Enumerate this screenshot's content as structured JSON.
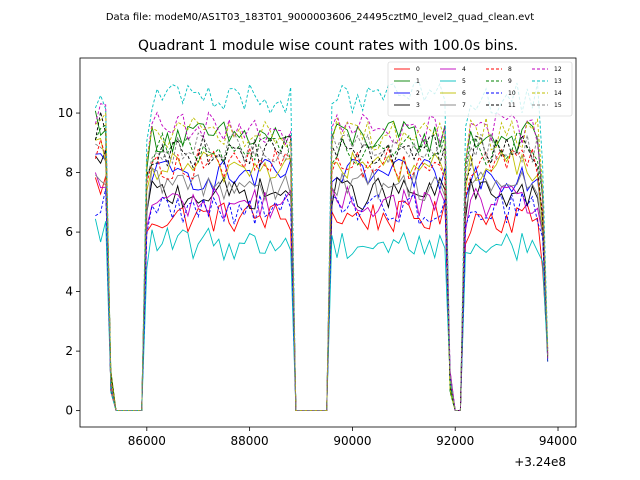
{
  "chart_data": {
    "type": "line",
    "suptitle": "Data file: modeM0/AS1T03_183T01_9000003606_24495cztM0_level2_quad_clean.evt",
    "title": "Quadrant 1 module wise count rates with 100.0s bins.",
    "xlabel": "",
    "ylabel": "",
    "x_offset_label": "+3.24e8",
    "xlim": [
      84700,
      94350
    ],
    "ylim": [
      -0.55,
      11.85
    ],
    "x_ticks": [
      {
        "value": 86000,
        "label": "86000"
      },
      {
        "value": 88000,
        "label": "88000"
      },
      {
        "value": 90000,
        "label": "90000"
      },
      {
        "value": 92000,
        "label": "92000"
      },
      {
        "value": 94000,
        "label": "94000"
      }
    ],
    "y_ticks": [
      {
        "value": 0,
        "label": "0"
      },
      {
        "value": 2,
        "label": "2"
      },
      {
        "value": 4,
        "label": "4"
      },
      {
        "value": 6,
        "label": "6"
      },
      {
        "value": 8,
        "label": "8"
      },
      {
        "value": 10,
        "label": "10"
      }
    ],
    "legend_position": "top-right",
    "series": [
      {
        "name": "0",
        "color": "#ff0000",
        "style": "solid",
        "level": 6.5,
        "start": 7.6
      },
      {
        "name": "1",
        "color": "#008000",
        "style": "solid",
        "level": 9.2,
        "start": 9.8
      },
      {
        "name": "2",
        "color": "#0000ff",
        "style": "solid",
        "level": 7.9,
        "start": 8.3
      },
      {
        "name": "3",
        "color": "#000000",
        "style": "solid",
        "level": 7.3,
        "start": 8.2
      },
      {
        "name": "4",
        "color": "#bf00bf",
        "style": "solid",
        "level": 7.0,
        "start": 7.6
      },
      {
        "name": "5",
        "color": "#00bfbf",
        "style": "solid",
        "level": 5.6,
        "start": 6.0
      },
      {
        "name": "6",
        "color": "#bfbf00",
        "style": "solid",
        "level": 8.2,
        "start": 8.6
      },
      {
        "name": "7",
        "color": "#808080",
        "style": "solid",
        "level": 7.6,
        "start": 7.4
      },
      {
        "name": "8",
        "color": "#ff0000",
        "style": "dashed",
        "level": 8.3,
        "start": 9.0
      },
      {
        "name": "9",
        "color": "#008000",
        "style": "dashed",
        "level": 8.8,
        "start": 9.6
      },
      {
        "name": "10",
        "color": "#0000ff",
        "style": "dashed",
        "level": 6.8,
        "start": 7.0
      },
      {
        "name": "11",
        "color": "#000000",
        "style": "dashed",
        "level": 8.7,
        "start": 9.5
      },
      {
        "name": "12",
        "color": "#bf00bf",
        "style": "dashed",
        "level": 9.5,
        "start": 10.0
      },
      {
        "name": "13",
        "color": "#00bfbf",
        "style": "dashed",
        "level": 10.5,
        "start": 10.5
      },
      {
        "name": "14",
        "color": "#bfbf00",
        "style": "dashed",
        "level": 9.3,
        "start": 9.9
      },
      {
        "name": "15",
        "color": "#808080",
        "style": "dashed",
        "level": 8.8,
        "start": 9.2
      }
    ],
    "segments": [
      {
        "x_start": 85000,
        "x_end": 85200,
        "kind": "on"
      },
      {
        "x_start": 85300,
        "x_end": 85300,
        "kind": "drop"
      },
      {
        "x_start": 85400,
        "x_end": 85900,
        "kind": "zero"
      },
      {
        "x_start": 86000,
        "x_end": 86000,
        "kind": "rise"
      },
      {
        "x_start": 86100,
        "x_end": 88800,
        "kind": "on"
      },
      {
        "x_start": 88900,
        "x_end": 89500,
        "kind": "zero"
      },
      {
        "x_start": 89600,
        "x_end": 91800,
        "kind": "on"
      },
      {
        "x_start": 91900,
        "x_end": 91900,
        "kind": "drop"
      },
      {
        "x_start": 92000,
        "x_end": 92100,
        "kind": "zero"
      },
      {
        "x_start": 92200,
        "x_end": 92200,
        "kind": "rise"
      },
      {
        "x_start": 92300,
        "x_end": 93800,
        "kind": "on"
      }
    ]
  }
}
